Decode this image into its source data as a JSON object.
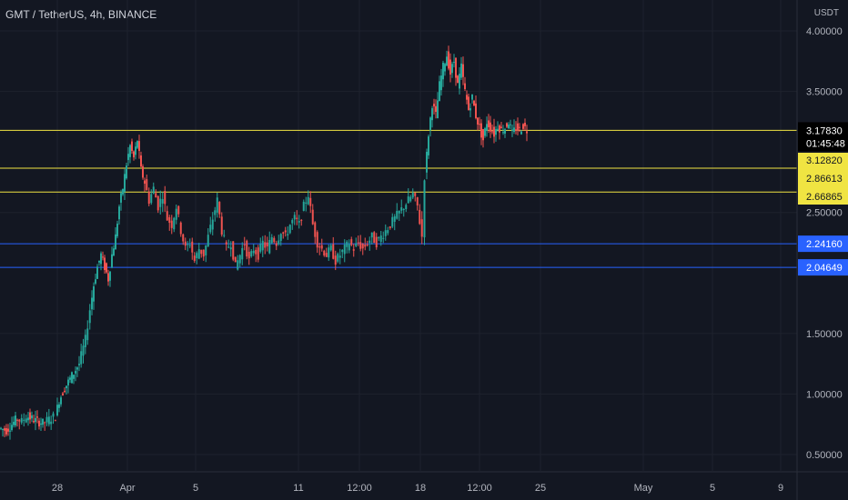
{
  "header": {
    "symbol_title": "GMT / TetherUS, 4h, BINANCE",
    "currency": "USDT"
  },
  "colors": {
    "background": "#131722",
    "grid": "#1e222d",
    "up": "#26a69a",
    "down": "#ef5350",
    "yellow_line": "#f0e442",
    "blue_line": "#2962ff",
    "price_label_bg": "#000000"
  },
  "chart_data": {
    "type": "candlestick",
    "y_axis": {
      "ticks": [
        "4.00000",
        "3.50000",
        "2.50000",
        "1.50000",
        "1.00000",
        "0.50000"
      ],
      "tick_values": [
        4.0,
        3.5,
        2.5,
        1.5,
        1.0,
        0.5
      ],
      "ylim": [
        0.35,
        4.2
      ]
    },
    "x_axis": {
      "ticks": [
        "28",
        "Apr",
        "5",
        "11",
        "12:00",
        "18",
        "12:00",
        "25",
        "May",
        "5",
        "9"
      ]
    },
    "current_price": {
      "value": "3.17830",
      "countdown": "01:45:48"
    },
    "horizontal_lines": [
      {
        "value": 3.1783,
        "label": "",
        "color": "#f0e442"
      },
      {
        "value": 2.8661,
        "label": "3.12820\n2.86613",
        "color": "#f0e442"
      },
      {
        "value": 2.66865,
        "label": "2.66865",
        "color": "#f0e442"
      },
      {
        "value": 2.2416,
        "label": "2.24160",
        "color": "#2962ff"
      },
      {
        "value": 2.04649,
        "label": "2.04649",
        "color": "#2962ff"
      }
    ],
    "price_labels": {
      "current": "3.17830",
      "countdown": "01:45:48",
      "yellow_1": "3.12820",
      "yellow_2": "2.86613",
      "yellow_3": "2.66865",
      "blue_1": "2.24160",
      "blue_2": "2.04649"
    },
    "series_path": [
      [
        0,
        0.72
      ],
      [
        8,
        0.7
      ],
      [
        14,
        0.75
      ],
      [
        20,
        0.8
      ],
      [
        25,
        0.77
      ],
      [
        30,
        0.82
      ],
      [
        40,
        0.78
      ],
      [
        48,
        0.76
      ],
      [
        55,
        0.79
      ],
      [
        62,
        0.82
      ],
      [
        66,
        0.95
      ],
      [
        72,
        1.05
      ],
      [
        80,
        1.15
      ],
      [
        88,
        1.25
      ],
      [
        95,
        1.45
      ],
      [
        100,
        1.7
      ],
      [
        104,
        1.9
      ],
      [
        108,
        2.05
      ],
      [
        112,
        2.15
      ],
      [
        116,
        2.05
      ],
      [
        120,
        1.95
      ],
      [
        124,
        2.15
      ],
      [
        128,
        2.3
      ],
      [
        132,
        2.55
      ],
      [
        136,
        2.7
      ],
      [
        140,
        2.9
      ],
      [
        144,
        3.05
      ],
      [
        148,
        2.95
      ],
      [
        152,
        3.1
      ],
      [
        156,
        2.85
      ],
      [
        160,
        2.75
      ],
      [
        165,
        2.6
      ],
      [
        170,
        2.7
      ],
      [
        175,
        2.55
      ],
      [
        180,
        2.65
      ],
      [
        185,
        2.45
      ],
      [
        190,
        2.4
      ],
      [
        195,
        2.55
      ],
      [
        200,
        2.35
      ],
      [
        205,
        2.2
      ],
      [
        210,
        2.25
      ],
      [
        215,
        2.1
      ],
      [
        220,
        2.2
      ],
      [
        225,
        2.15
      ],
      [
        230,
        2.3
      ],
      [
        235,
        2.45
      ],
      [
        240,
        2.6
      ],
      [
        245,
        2.35
      ],
      [
        250,
        2.2
      ],
      [
        255,
        2.25
      ],
      [
        260,
        2.05
      ],
      [
        265,
        2.15
      ],
      [
        270,
        2.25
      ],
      [
        275,
        2.1
      ],
      [
        280,
        2.2
      ],
      [
        285,
        2.15
      ],
      [
        290,
        2.25
      ],
      [
        295,
        2.2
      ],
      [
        300,
        2.3
      ],
      [
        305,
        2.25
      ],
      [
        310,
        2.35
      ],
      [
        315,
        2.3
      ],
      [
        320,
        2.4
      ],
      [
        325,
        2.45
      ],
      [
        330,
        2.4
      ],
      [
        335,
        2.55
      ],
      [
        340,
        2.65
      ],
      [
        345,
        2.4
      ],
      [
        350,
        2.25
      ],
      [
        355,
        2.2
      ],
      [
        360,
        2.15
      ],
      [
        365,
        2.2
      ],
      [
        370,
        2.1
      ],
      [
        375,
        2.15
      ],
      [
        380,
        2.2
      ],
      [
        385,
        2.25
      ],
      [
        390,
        2.2
      ],
      [
        395,
        2.25
      ],
      [
        400,
        2.2
      ],
      [
        405,
        2.25
      ],
      [
        410,
        2.3
      ],
      [
        415,
        2.25
      ],
      [
        420,
        2.3
      ],
      [
        425,
        2.35
      ],
      [
        430,
        2.4
      ],
      [
        435,
        2.45
      ],
      [
        440,
        2.5
      ],
      [
        445,
        2.55
      ],
      [
        450,
        2.6
      ],
      [
        455,
        2.65
      ],
      [
        460,
        2.55
      ],
      [
        465,
        2.3
      ],
      [
        468,
        2.8
      ],
      [
        472,
        3.15
      ],
      [
        476,
        3.4
      ],
      [
        480,
        3.3
      ],
      [
        484,
        3.55
      ],
      [
        488,
        3.7
      ],
      [
        492,
        3.8
      ],
      [
        496,
        3.65
      ],
      [
        500,
        3.75
      ],
      [
        504,
        3.55
      ],
      [
        508,
        3.7
      ],
      [
        512,
        3.5
      ],
      [
        516,
        3.35
      ],
      [
        520,
        3.45
      ],
      [
        524,
        3.3
      ],
      [
        528,
        3.2
      ],
      [
        532,
        3.1
      ],
      [
        536,
        3.25
      ],
      [
        540,
        3.2
      ],
      [
        544,
        3.15
      ],
      [
        548,
        3.22
      ],
      [
        552,
        3.18
      ],
      [
        556,
        3.2
      ],
      [
        560,
        3.25
      ],
      [
        564,
        3.15
      ],
      [
        568,
        3.2
      ],
      [
        572,
        3.18
      ],
      [
        576,
        3.22
      ],
      [
        580,
        3.18
      ]
    ]
  }
}
